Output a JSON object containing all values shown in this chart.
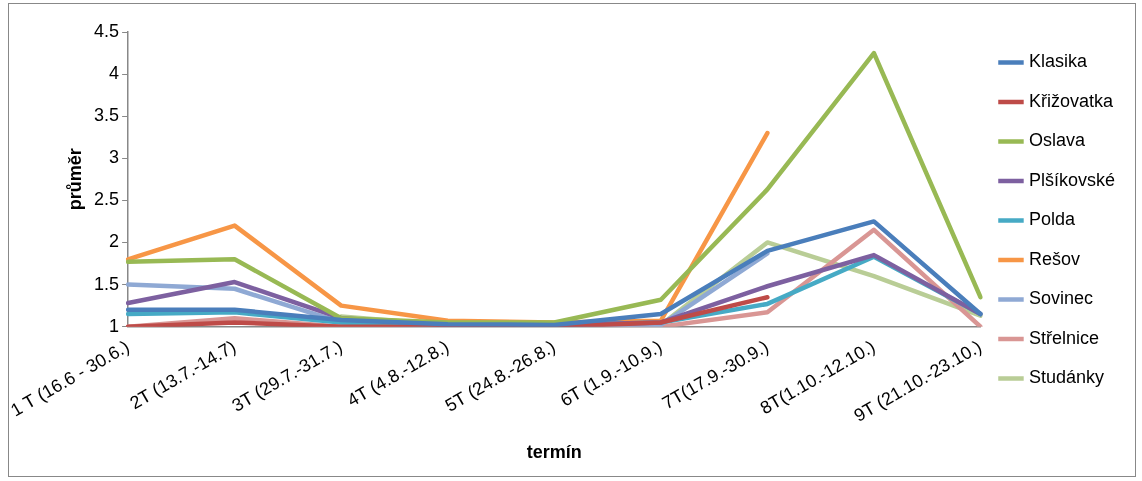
{
  "chart_data": {
    "type": "line",
    "xlabel": "termín",
    "ylabel": "průměr",
    "categories": [
      "1 T (16.6 - 30.6.)",
      "2T (13.7.-14.7)",
      "3T (29.7.-31.7.)",
      "4T (4.8.-12.8.)",
      "5T (24.8.-26.8.)",
      "6T (1.9.-10.9.)",
      "7T(17.9.-30.9.)",
      "8T(1.10.-12.10.)",
      "9T (21.10.-23.10.)"
    ],
    "series": [
      {
        "name": "Klasika",
        "color": "#4a7ebb",
        "values": [
          1.2,
          1.2,
          1.08,
          1.03,
          1.02,
          1.15,
          1.9,
          2.25,
          1.15
        ]
      },
      {
        "name": "Křižovatka",
        "color": "#be4b48",
        "values": [
          1.0,
          1.05,
          1.0,
          1.0,
          1.0,
          1.05,
          1.35,
          null,
          null
        ]
      },
      {
        "name": "Oslava",
        "color": "#98b954",
        "values": [
          1.77,
          1.8,
          1.1,
          1.05,
          1.05,
          1.32,
          2.63,
          4.25,
          1.35
        ]
      },
      {
        "name": "Plšíkovské",
        "color": "#7d60a0",
        "values": [
          1.28,
          1.53,
          1.1,
          1.02,
          1.02,
          1.05,
          1.48,
          1.85,
          1.15
        ]
      },
      {
        "name": "Polda",
        "color": "#46aac5",
        "values": [
          1.15,
          1.17,
          1.05,
          1.02,
          1.02,
          1.05,
          1.27,
          1.83,
          1.15
        ]
      },
      {
        "name": "Rešov",
        "color": "#f79646",
        "values": [
          1.8,
          2.2,
          1.25,
          1.07,
          1.05,
          1.07,
          3.3,
          null,
          null
        ]
      },
      {
        "name": "Sovinec",
        "color": "#8fa9d4",
        "values": [
          1.5,
          1.45,
          1.05,
          1.02,
          1.02,
          1.02,
          1.87,
          null,
          null
        ]
      },
      {
        "name": "Střelnice",
        "color": "#d99694",
        "values": [
          1.0,
          1.1,
          1.0,
          1.0,
          1.0,
          1.0,
          1.17,
          2.15,
          1.0
        ]
      },
      {
        "name": "Studánky",
        "color": "#b9cd96",
        "values": [
          null,
          null,
          1.12,
          1.02,
          1.02,
          1.02,
          2.0,
          1.6,
          1.13
        ]
      }
    ],
    "ylim": [
      1,
      4.5
    ],
    "yticks": [
      1,
      1.5,
      2,
      2.5,
      3,
      3.5,
      4,
      4.5
    ],
    "grid": false,
    "legend": "right",
    "marker": "none",
    "line_style": "solid"
  }
}
